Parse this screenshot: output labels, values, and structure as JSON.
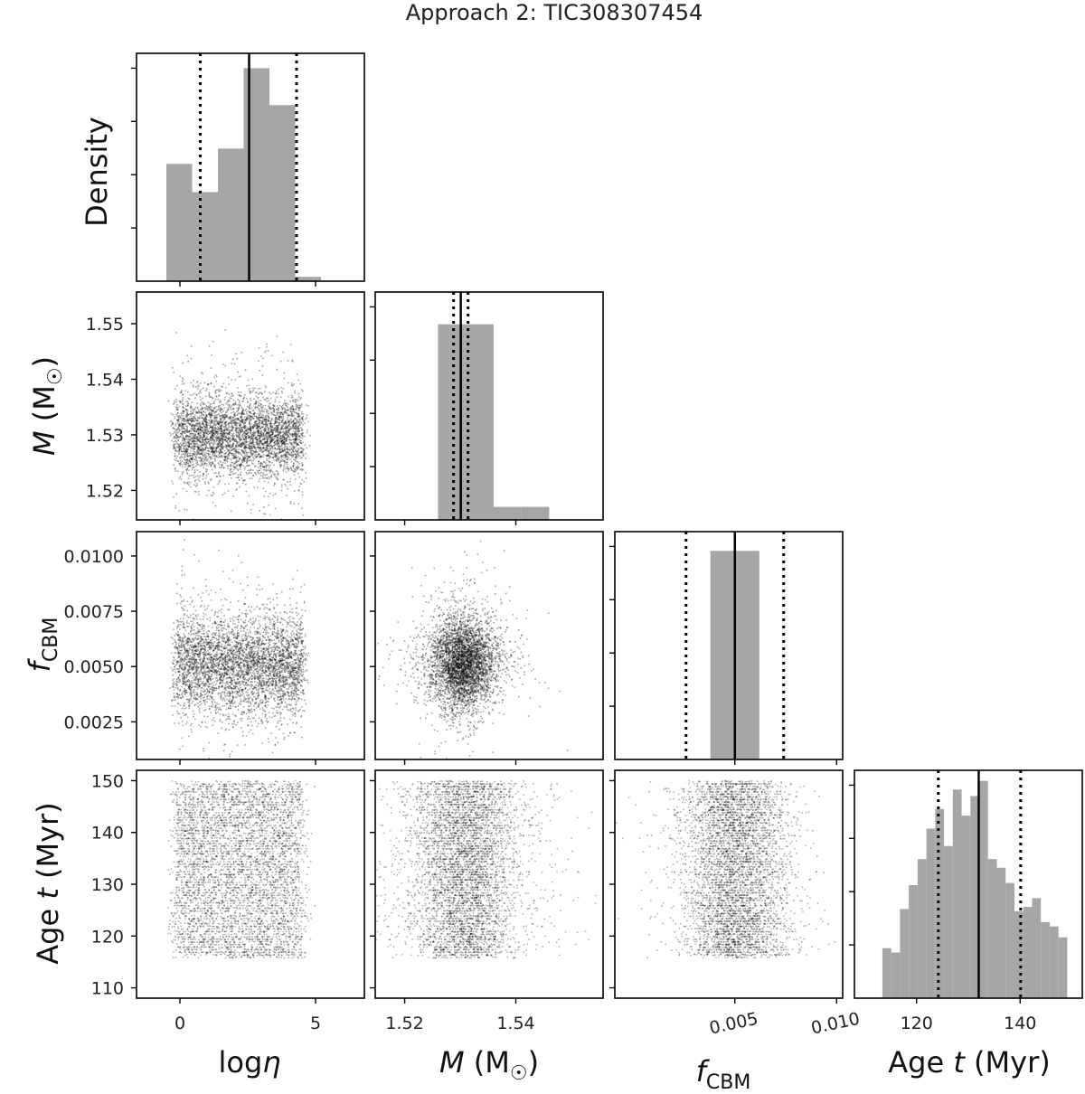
{
  "chart_data": {
    "type": "corner",
    "title": "Approach 2: TIC308307454",
    "parameters": [
      {
        "key": "logeta",
        "label_main": "log",
        "label_italic": "η",
        "axis_label_full": "logη"
      },
      {
        "key": "mass",
        "label_italic": "M",
        "label_main": " (M",
        "label_sub": "☉",
        "label_end": ")",
        "axis_label_full": "M (M☉)"
      },
      {
        "key": "fcbm",
        "label_italic": "f",
        "label_sub": "CBM",
        "axis_label_full": "fCBM"
      },
      {
        "key": "age",
        "label_main": "Age ",
        "label_italic": "t",
        "label_end": " (Myr)",
        "axis_label_full": "Age t (Myr)"
      }
    ],
    "diag_ylabel": "Density",
    "axis_ranges": {
      "logeta": [
        -1.6,
        6.8
      ],
      "mass": [
        1.5147,
        1.5557
      ],
      "fcbm": [
        -0.0009,
        0.0103
      ],
      "fcbm_y": [
        0.0008,
        0.0111
      ],
      "age": [
        108,
        152
      ]
    },
    "ticks": {
      "logeta": [
        0,
        5
      ],
      "mass_x": [
        1.52,
        1.54
      ],
      "mass_y": [
        1.52,
        1.53,
        1.54,
        1.55
      ],
      "fcbm_x": [
        0.005,
        0.01
      ],
      "fcbm_y": [
        0.0025,
        0.005,
        0.0075,
        0.01
      ],
      "age_x": [
        120,
        140
      ],
      "age_y": [
        110,
        120,
        130,
        140,
        150
      ]
    },
    "tick_labels": {
      "logeta": [
        "0",
        "5"
      ],
      "mass_x": [
        "1.52",
        "1.54"
      ],
      "mass_y": [
        "1.52",
        "1.53",
        "1.54",
        "1.55"
      ],
      "fcbm_x": [
        "0.005",
        "0.010"
      ],
      "fcbm_y": [
        "0.0025",
        "0.0050",
        "0.0075",
        "0.0100"
      ],
      "age_x": [
        "120",
        "140"
      ],
      "age_y": [
        "110",
        "120",
        "130",
        "140",
        "150"
      ]
    },
    "diag_yticks": [
      0.25,
      0.5,
      0.75,
      1.0
    ],
    "histograms": {
      "logeta": {
        "edges": [
          -0.5,
          0.45,
          1.4,
          2.35,
          3.3,
          4.25,
          5.2,
          6.15
        ],
        "values": [
          0.54,
          0.41,
          0.61,
          0.98,
          0.81,
          0.02,
          0.0
        ],
        "median": 2.55,
        "low": 0.75,
        "high": 4.3
      },
      "mass": {
        "edges": [
          1.526,
          1.531,
          1.536,
          1.541,
          1.546
        ],
        "values": [
          0.9,
          0.9,
          0.06,
          0.06
        ],
        "median": 1.5301,
        "low": 1.5288,
        "high": 1.5314
      },
      "fcbm": {
        "edges": [
          0.0038,
          0.0062
        ],
        "values": [
          0.96
        ],
        "median": 0.005,
        "low": 0.0026,
        "high": 0.0074
      },
      "age": {
        "edges": [
          110,
          111.7,
          113.4,
          115.1,
          116.8,
          118.5,
          120.2,
          121.9,
          123.6,
          125.3,
          127.0,
          128.7,
          130.4,
          132.1,
          133.8,
          135.5,
          137.2,
          138.9,
          140.6,
          142.3,
          144.0,
          145.7,
          147.4,
          149.1
        ],
        "values": [
          0.0,
          0.0,
          0.23,
          0.21,
          0.41,
          0.52,
          0.64,
          0.78,
          0.87,
          0.7,
          0.96,
          0.84,
          0.93,
          1.0,
          0.64,
          0.6,
          0.53,
          0.4,
          0.42,
          0.46,
          0.35,
          0.33,
          0.28
        ],
        "median": 132.0,
        "low": 124.2,
        "high": 140.1
      }
    },
    "scatter_clouds": {
      "mass_vs_logeta": {
        "x_range": [
          -0.2,
          4.5
        ],
        "y_center": 1.53,
        "y_spread": 0.0035,
        "n": 4200
      },
      "fcbm_vs_logeta": {
        "x_range": [
          -0.2,
          4.5
        ],
        "y_center": 0.0051,
        "y_spread": 0.0011,
        "n": 4200
      },
      "fcbm_vs_mass": {
        "x_center": 1.5303,
        "x_spread": 0.0028,
        "y_center": 0.0052,
        "y_spread": 0.001,
        "n": 4200
      },
      "age_vs_logeta": {
        "x_range": [
          -0.2,
          4.5
        ],
        "y_range": [
          116,
          150
        ],
        "n": 4600
      },
      "age_vs_mass": {
        "x_center": 1.5305,
        "x_spread": 0.0045,
        "y_range": [
          116,
          150
        ],
        "n": 4600
      },
      "age_vs_fcbm": {
        "x_center": 0.005,
        "x_spread": 0.0012,
        "y_range": [
          116,
          150
        ],
        "n": 4600
      }
    }
  }
}
